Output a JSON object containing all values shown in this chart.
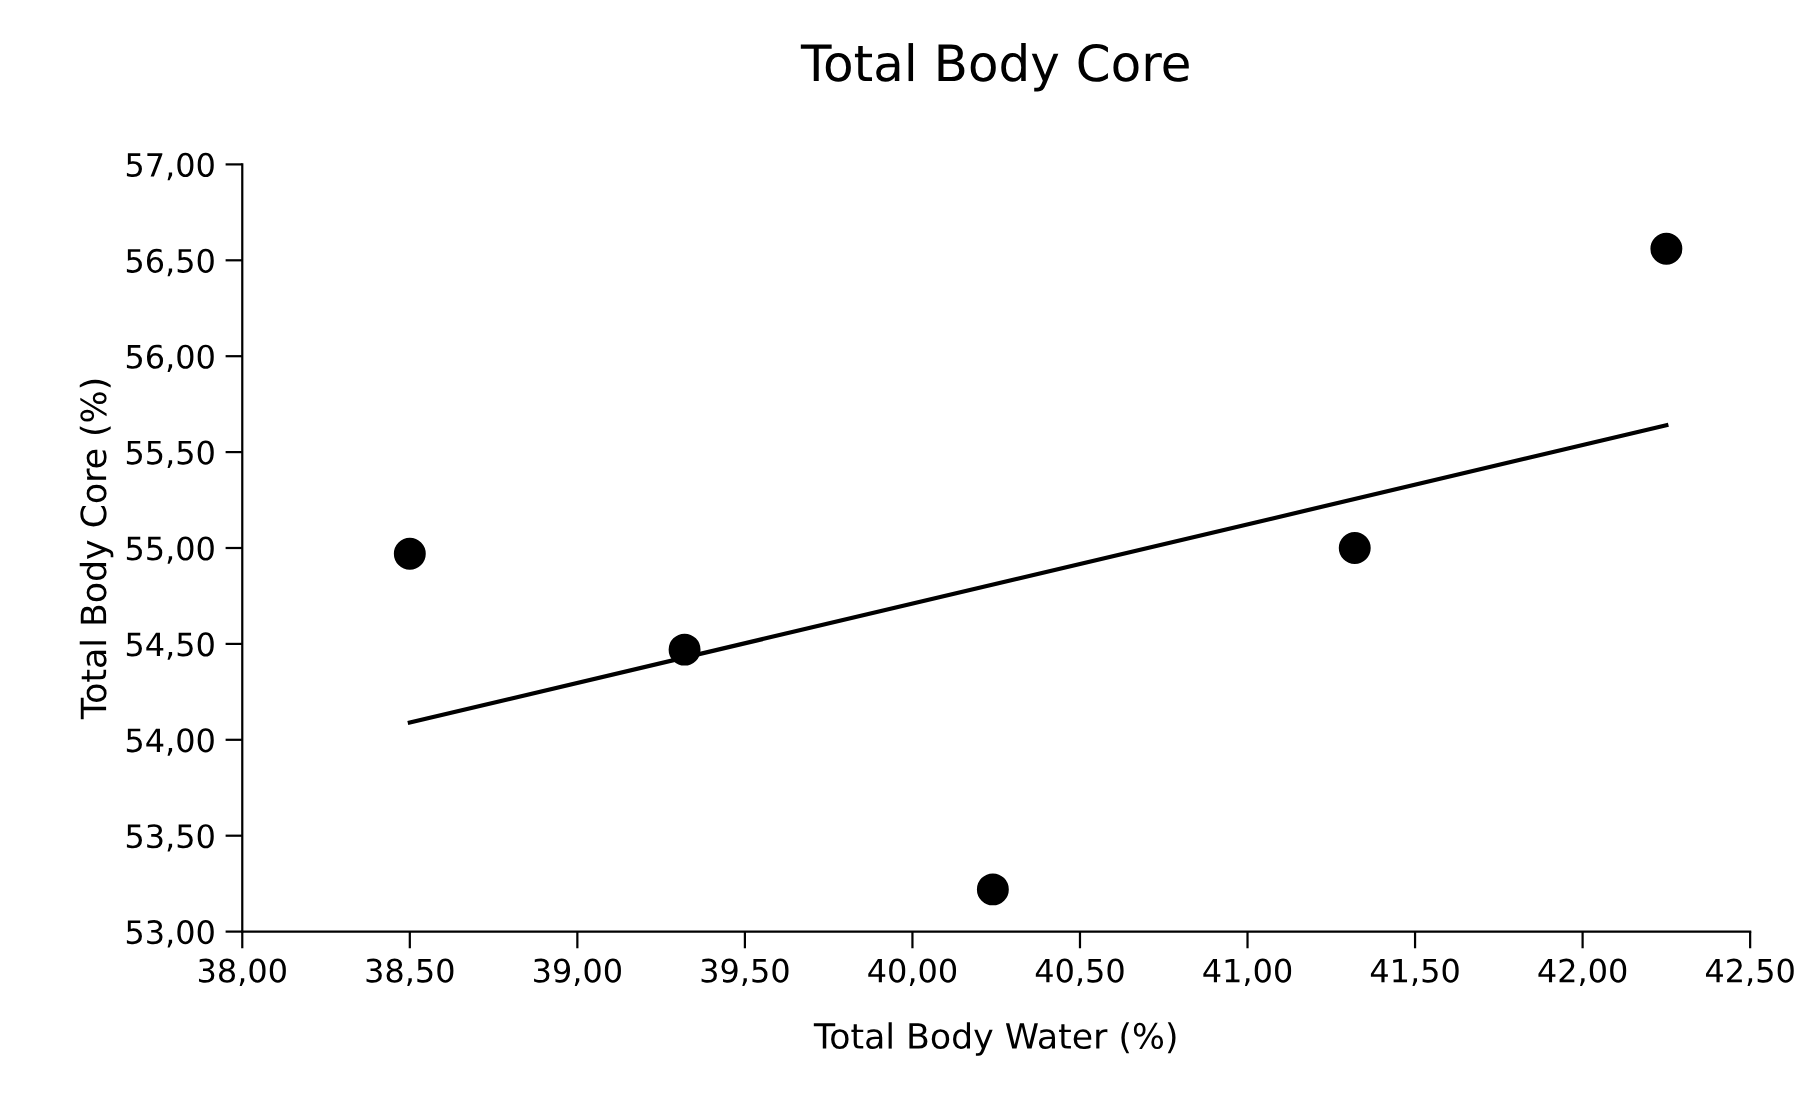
{
  "chart_data": {
    "type": "scatter",
    "title": "Total Body Core",
    "xlabel": "Total Body Water (%)",
    "ylabel": "Total Body Core (%)",
    "marker": "circle",
    "grid": false,
    "legend": false,
    "xlim": [
      38,
      42.5
    ],
    "ylim": [
      53,
      57
    ],
    "xticks": [
      {
        "value": 38,
        "label": "38,00"
      },
      {
        "value": 38.5,
        "label": "38,50"
      },
      {
        "value": 39,
        "label": "39,00"
      },
      {
        "value": 39.5,
        "label": "39,50"
      },
      {
        "value": 40,
        "label": "40,00"
      },
      {
        "value": 40.5,
        "label": "40,50"
      },
      {
        "value": 41,
        "label": "41,00"
      },
      {
        "value": 41.5,
        "label": "41,50"
      },
      {
        "value": 42,
        "label": "42,00"
      },
      {
        "value": 42.5,
        "label": "42,50"
      }
    ],
    "yticks": [
      {
        "value": 53,
        "label": "53,00"
      },
      {
        "value": 53.5,
        "label": "53,50"
      },
      {
        "value": 54,
        "label": "54,00"
      },
      {
        "value": 54.5,
        "label": "54,50"
      },
      {
        "value": 55,
        "label": "55,00"
      },
      {
        "value": 55.5,
        "label": "55,50"
      },
      {
        "value": 56,
        "label": "56,00"
      },
      {
        "value": 56.5,
        "label": "56,50"
      },
      {
        "value": 57,
        "label": "57,00"
      }
    ],
    "series": [
      {
        "color": "#000000",
        "x": [
          38.5,
          39.32,
          40.24,
          41.32,
          42.25
        ],
        "values": [
          54.97,
          54.47,
          53.22,
          55.0,
          56.56
        ]
      },
      {
        "type": "line",
        "color": "#000000",
        "marker": "none",
        "x": [
          38.5,
          42.25
        ],
        "values": [
          54.09,
          55.64
        ]
      }
    ]
  }
}
